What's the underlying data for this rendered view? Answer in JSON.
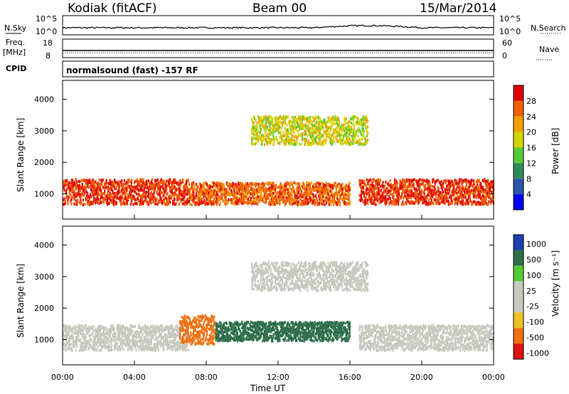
{
  "header": {
    "station": "Kodiak (fitACF)",
    "beam": "Beam 00",
    "date": "15/Mar/2014"
  },
  "strip_labels": {
    "nsky": "N.Sky",
    "nsky_ticks": [
      "10^5",
      "10^0"
    ],
    "nsearch": "N.Search",
    "nsearch_ticks": [
      "10^5",
      "10^0"
    ],
    "freq": "Freq.",
    "freq_unit": "[MHz]",
    "freq_ticks": [
      "18",
      "8"
    ],
    "nave": "Nave",
    "nave_ticks": [
      "60",
      "0"
    ],
    "cpid": "CPID",
    "cpid_text": "normalsound (fast) -157 RF"
  },
  "chart_data": [
    {
      "type": "heatmap",
      "name": "power",
      "ylabel": "Slant Range [km]",
      "xlabel": "",
      "ylim": [
        200,
        4600
      ],
      "yticks": [
        "1000",
        "2000",
        "3000",
        "4000"
      ],
      "colorbar": {
        "label": "Power [dB]",
        "ticks": [
          "4",
          "8",
          "12",
          "16",
          "20",
          "24",
          "28"
        ],
        "colors": [
          "#0000ee",
          "#2a55aa",
          "#2f8a5a",
          "#55cc33",
          "#d4d400",
          "#f2a000",
          "#f06000",
          "#e00000"
        ]
      },
      "dominant_range_km": {
        "start": 700,
        "end": 1500
      },
      "scatter_ranges": [
        {
          "from_time": "00:00",
          "to_time": "07:00",
          "range_km": [
            700,
            1500
          ],
          "level_db": 26
        },
        {
          "from_time": "07:00",
          "to_time": "16:00",
          "range_km": [
            700,
            1400
          ],
          "level_db": 24
        },
        {
          "from_time": "10:30",
          "to_time": "17:00",
          "range_km": [
            2600,
            3500
          ],
          "level_db": 16
        },
        {
          "from_time": "16:30",
          "to_time": "24:00",
          "range_km": [
            700,
            1500
          ],
          "level_db": 26
        }
      ]
    },
    {
      "type": "heatmap",
      "name": "velocity",
      "ylabel": "Slant Range [km]",
      "xlabel": "Time UT",
      "ylim": [
        200,
        4600
      ],
      "yticks": [
        "1000",
        "2000",
        "3000",
        "4000"
      ],
      "xticks": [
        "00:00",
        "04:00",
        "08:00",
        "12:00",
        "16:00",
        "20:00",
        "00:00"
      ],
      "colorbar": {
        "label": "Velocity [m s⁻¹]",
        "ticks": [
          "1000",
          "500",
          "100",
          "25",
          "-25",
          "-100",
          "-500",
          "-1000"
        ],
        "colors": [
          "#1a3fae",
          "#2e6f4a",
          "#55cc33",
          "#c8c8c0",
          "#c8c8c0",
          "#f0c020",
          "#f07010",
          "#e01010"
        ]
      },
      "scatter_ranges": [
        {
          "from_time": "00:00",
          "to_time": "07:00",
          "range_km": [
            700,
            1500
          ],
          "level_ms": 0
        },
        {
          "from_time": "06:30",
          "to_time": "08:30",
          "range_km": [
            900,
            1800
          ],
          "level_ms": -300
        },
        {
          "from_time": "08:30",
          "to_time": "16:00",
          "range_km": [
            1000,
            1600
          ],
          "level_ms": 150
        },
        {
          "from_time": "10:30",
          "to_time": "17:00",
          "range_km": [
            2600,
            3500
          ],
          "level_ms": 0
        },
        {
          "from_time": "16:30",
          "to_time": "24:00",
          "range_km": [
            700,
            1500
          ],
          "level_ms": 0
        }
      ]
    }
  ],
  "x_axis": {
    "ticks": [
      "00:00",
      "04:00",
      "08:00",
      "12:00",
      "16:00",
      "20:00",
      "00:00"
    ],
    "label": "Time UT"
  }
}
